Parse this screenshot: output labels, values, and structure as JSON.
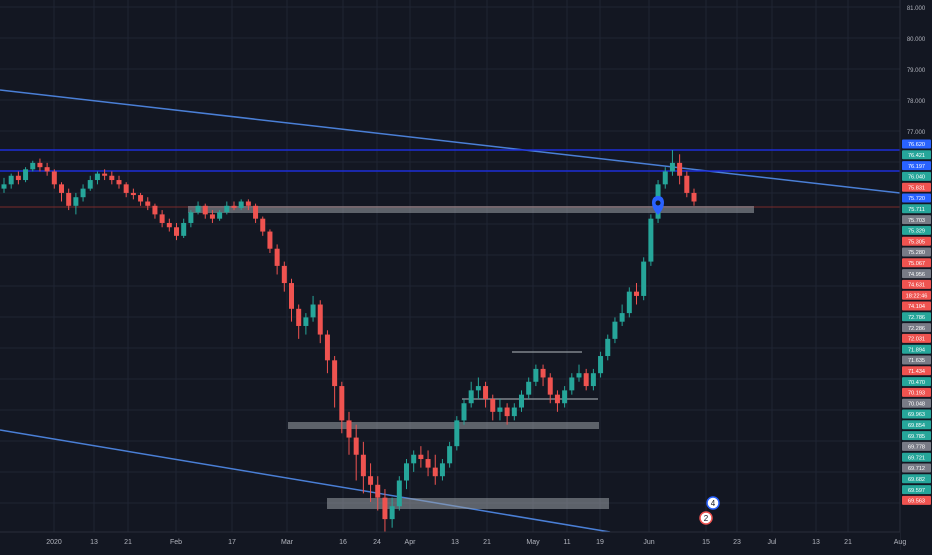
{
  "colors": {
    "background": "#131722",
    "grid": "#1f2433",
    "up": "#26a69a",
    "down": "#ef5350",
    "trendline": "#4a7fd6",
    "resistance": "#1c2fd8",
    "zone": "#9aa0a6",
    "axis_text": "#b2b5be",
    "price_line": "#7a2b2b"
  },
  "x_axis": {
    "labels": [
      "2020",
      "13",
      "21",
      "Feb",
      "17",
      "Mar",
      "16",
      "24",
      "Apr",
      "13",
      "21",
      "May",
      "11",
      "19",
      "Jun",
      "15",
      "23",
      "Jul",
      "13",
      "21",
      "Aug"
    ]
  },
  "y_axis": {
    "ticks": [
      "81.000",
      "80.000",
      "79.000",
      "78.000",
      "77.000"
    ],
    "badges": [
      {
        "text": "76.620",
        "color": "#2962ff"
      },
      {
        "text": "76.421",
        "color": "#26a69a"
      },
      {
        "text": "76.197",
        "color": "#2962ff"
      },
      {
        "text": "76.040",
        "color": "#26a69a"
      },
      {
        "text": "75.831",
        "color": "#ef5350"
      },
      {
        "text": "75.720",
        "color": "#2962ff"
      },
      {
        "text": "75.711",
        "color": "#26a69a"
      },
      {
        "text": "75.703",
        "color": "#787b86"
      },
      {
        "text": "75.329",
        "color": "#26a69a"
      },
      {
        "text": "75.305",
        "color": "#ef5350"
      },
      {
        "text": "75.280",
        "color": "#787b86"
      },
      {
        "text": "75.067",
        "color": "#ef5350"
      },
      {
        "text": "74.956",
        "color": "#787b86"
      },
      {
        "text": "74.631",
        "color": "#ef5350"
      },
      {
        "text": "18:22:46",
        "color": "#ef5350"
      },
      {
        "text": "74.104",
        "color": "#ef5350"
      },
      {
        "text": "72.786",
        "color": "#26a69a"
      },
      {
        "text": "72.286",
        "color": "#787b86"
      },
      {
        "text": "72.031",
        "color": "#ef5350"
      },
      {
        "text": "71.894",
        "color": "#26a69a"
      },
      {
        "text": "71.635",
        "color": "#787b86"
      },
      {
        "text": "71.434",
        "color": "#ef5350"
      },
      {
        "text": "70.470",
        "color": "#26a69a"
      },
      {
        "text": "70.193",
        "color": "#ef5350"
      },
      {
        "text": "70.048",
        "color": "#787b86"
      },
      {
        "text": "69.963",
        "color": "#26a69a"
      },
      {
        "text": "69.854",
        "color": "#26a69a"
      },
      {
        "text": "69.785",
        "color": "#26a69a"
      },
      {
        "text": "69.778",
        "color": "#787b86"
      },
      {
        "text": "69.721",
        "color": "#26a69a"
      },
      {
        "text": "69.712",
        "color": "#787b86"
      },
      {
        "text": "69.682",
        "color": "#26a69a"
      },
      {
        "text": "69.597",
        "color": "#26a69a"
      },
      {
        "text": "69.563",
        "color": "#ef5350"
      }
    ]
  },
  "candles": [
    [
      76.0,
      76.1,
      76.25,
      75.9
    ],
    [
      76.1,
      76.3,
      76.35,
      76.0
    ],
    [
      76.3,
      76.2,
      76.4,
      76.1
    ],
    [
      76.2,
      76.45,
      76.5,
      76.15
    ],
    [
      76.45,
      76.6,
      76.65,
      76.4
    ],
    [
      76.6,
      76.5,
      76.7,
      76.4
    ],
    [
      76.5,
      76.4,
      76.6,
      76.3
    ],
    [
      76.4,
      76.1,
      76.45,
      76.0
    ],
    [
      76.1,
      75.9,
      76.15,
      75.7
    ],
    [
      75.9,
      75.6,
      76.0,
      75.5
    ],
    [
      75.6,
      75.8,
      75.9,
      75.4
    ],
    [
      75.8,
      76.0,
      76.1,
      75.7
    ],
    [
      76.0,
      76.2,
      76.3,
      75.95
    ],
    [
      76.2,
      76.35,
      76.4,
      76.1
    ],
    [
      76.35,
      76.3,
      76.45,
      76.2
    ],
    [
      76.3,
      76.2,
      76.4,
      76.1
    ],
    [
      76.2,
      76.1,
      76.3,
      76.0
    ],
    [
      76.1,
      75.9,
      76.15,
      75.8
    ],
    [
      75.9,
      75.85,
      76.0,
      75.75
    ],
    [
      75.85,
      75.7,
      75.9,
      75.6
    ],
    [
      75.7,
      75.6,
      75.8,
      75.5
    ],
    [
      75.6,
      75.4,
      75.65,
      75.3
    ],
    [
      75.4,
      75.2,
      75.5,
      75.1
    ],
    [
      75.2,
      75.1,
      75.3,
      75.0
    ],
    [
      75.1,
      74.9,
      75.2,
      74.8
    ],
    [
      74.9,
      75.2,
      75.3,
      74.85
    ],
    [
      75.2,
      75.45,
      75.5,
      75.1
    ],
    [
      75.45,
      75.6,
      75.7,
      75.4
    ],
    [
      75.6,
      75.4,
      75.65,
      75.3
    ],
    [
      75.4,
      75.3,
      75.5,
      75.2
    ],
    [
      75.3,
      75.45,
      75.5,
      75.25
    ],
    [
      75.45,
      75.6,
      75.7,
      75.4
    ],
    [
      75.6,
      75.55,
      75.7,
      75.5
    ],
    [
      75.55,
      75.7,
      75.75,
      75.5
    ],
    [
      75.7,
      75.6,
      75.75,
      75.5
    ],
    [
      75.6,
      75.3,
      75.65,
      75.2
    ],
    [
      75.3,
      75.0,
      75.35,
      74.9
    ],
    [
      75.0,
      74.6,
      75.05,
      74.5
    ],
    [
      74.6,
      74.2,
      74.7,
      74.0
    ],
    [
      74.2,
      73.8,
      74.3,
      73.6
    ],
    [
      73.8,
      73.2,
      73.9,
      72.9
    ],
    [
      73.2,
      72.8,
      73.3,
      72.5
    ],
    [
      72.8,
      73.0,
      73.1,
      72.6
    ],
    [
      73.0,
      73.3,
      73.5,
      72.9
    ],
    [
      73.3,
      72.6,
      73.4,
      72.4
    ],
    [
      72.6,
      72.0,
      72.7,
      71.7
    ],
    [
      72.0,
      71.4,
      72.1,
      70.9
    ],
    [
      71.4,
      70.6,
      71.5,
      70.3
    ],
    [
      70.6,
      70.2,
      70.8,
      69.8
    ],
    [
      70.2,
      69.8,
      70.5,
      69.2
    ],
    [
      69.8,
      69.3,
      70.1,
      68.9
    ],
    [
      69.3,
      69.1,
      69.6,
      68.7
    ],
    [
      69.1,
      68.8,
      69.3,
      68.5
    ],
    [
      68.8,
      68.3,
      69.0,
      68.0
    ],
    [
      68.3,
      68.6,
      68.8,
      68.1
    ],
    [
      68.6,
      69.2,
      69.3,
      68.5
    ],
    [
      69.2,
      69.6,
      69.7,
      69.0
    ],
    [
      69.6,
      69.8,
      69.9,
      69.4
    ],
    [
      69.8,
      69.7,
      70.0,
      69.5
    ],
    [
      69.7,
      69.5,
      69.9,
      69.3
    ],
    [
      69.5,
      69.3,
      69.8,
      69.1
    ],
    [
      69.3,
      69.6,
      69.7,
      69.2
    ],
    [
      69.6,
      70.0,
      70.1,
      69.5
    ],
    [
      70.0,
      70.6,
      70.7,
      69.9
    ],
    [
      70.6,
      71.0,
      71.1,
      70.5
    ],
    [
      71.0,
      71.3,
      71.5,
      70.9
    ],
    [
      71.3,
      71.4,
      71.6,
      71.1
    ],
    [
      71.4,
      71.1,
      71.5,
      70.9
    ],
    [
      71.1,
      70.8,
      71.2,
      70.6
    ],
    [
      70.8,
      70.9,
      71.1,
      70.6
    ],
    [
      70.9,
      70.7,
      71.0,
      70.5
    ],
    [
      70.7,
      70.9,
      71.0,
      70.6
    ],
    [
      70.9,
      71.2,
      71.3,
      70.8
    ],
    [
      71.2,
      71.5,
      71.6,
      71.1
    ],
    [
      71.5,
      71.8,
      71.9,
      71.4
    ],
    [
      71.8,
      71.6,
      71.9,
      71.4
    ],
    [
      71.6,
      71.2,
      71.7,
      71.0
    ],
    [
      71.2,
      71.0,
      71.3,
      70.8
    ],
    [
      71.0,
      71.3,
      71.4,
      70.9
    ],
    [
      71.3,
      71.6,
      71.7,
      71.2
    ],
    [
      71.6,
      71.7,
      71.9,
      71.5
    ],
    [
      71.7,
      71.4,
      71.8,
      71.3
    ],
    [
      71.4,
      71.7,
      71.8,
      71.3
    ],
    [
      71.7,
      72.1,
      72.2,
      71.6
    ],
    [
      72.1,
      72.5,
      72.6,
      72.0
    ],
    [
      72.5,
      72.9,
      73.0,
      72.4
    ],
    [
      72.9,
      73.1,
      73.3,
      72.8
    ],
    [
      73.1,
      73.6,
      73.7,
      73.0
    ],
    [
      73.6,
      73.5,
      73.8,
      73.3
    ],
    [
      73.5,
      74.3,
      74.4,
      73.4
    ],
    [
      74.3,
      75.3,
      75.4,
      74.2
    ],
    [
      75.3,
      76.1,
      76.2,
      75.2
    ],
    [
      76.1,
      76.4,
      76.5,
      76.0
    ],
    [
      76.4,
      76.6,
      76.9,
      76.3
    ],
    [
      76.6,
      76.3,
      76.8,
      76.1
    ],
    [
      76.3,
      75.9,
      76.4,
      75.8
    ],
    [
      75.9,
      75.7,
      76.0,
      75.6
    ]
  ],
  "annotations": {
    "callout_label": "",
    "badge_a": "4",
    "badge_b": "2"
  }
}
